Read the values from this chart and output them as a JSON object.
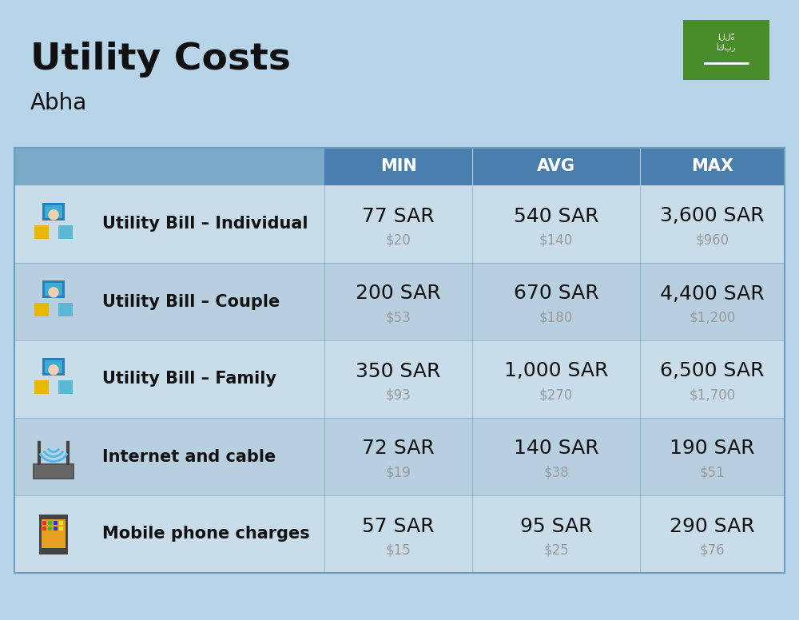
{
  "title": "Utility Costs",
  "subtitle": "Abha",
  "background_color": "#b8d4e8",
  "header_bg_color_dark": "#4a7fad",
  "header_bg_color_light": "#7aaac8",
  "header_text_color": "#ffffff",
  "row_bg_color_1": "#c8dcea",
  "row_bg_color_2": "#b8cfe0",
  "divider_color": "#6a9fc0",
  "text_dark": "#111111",
  "text_gray": "#999999",
  "flag_green": "#4a8c2a",
  "rows": [
    {
      "label": "Utility Bill – Individual",
      "min_sar": "77 SAR",
      "min_usd": "$20",
      "avg_sar": "540 SAR",
      "avg_usd": "$140",
      "max_sar": "3,600 SAR",
      "max_usd": "$960"
    },
    {
      "label": "Utility Bill – Couple",
      "min_sar": "200 SAR",
      "min_usd": "$53",
      "avg_sar": "670 SAR",
      "avg_usd": "$180",
      "max_sar": "4,400 SAR",
      "max_usd": "$1,200"
    },
    {
      "label": "Utility Bill – Family",
      "min_sar": "350 SAR",
      "min_usd": "$93",
      "avg_sar": "1,000 SAR",
      "avg_usd": "$270",
      "max_sar": "6,500 SAR",
      "max_usd": "$1,700"
    },
    {
      "label": "Internet and cable",
      "min_sar": "72 SAR",
      "min_usd": "$19",
      "avg_sar": "140 SAR",
      "avg_usd": "$38",
      "max_sar": "190 SAR",
      "max_usd": "$51"
    },
    {
      "label": "Mobile phone charges",
      "min_sar": "57 SAR",
      "min_usd": "$15",
      "avg_sar": "95 SAR",
      "avg_usd": "$25",
      "max_sar": "290 SAR",
      "max_usd": "$76"
    }
  ],
  "title_fontsize": 34,
  "subtitle_fontsize": 20,
  "header_fontsize": 15,
  "label_fontsize": 15,
  "value_fontsize": 18,
  "usd_fontsize": 12
}
